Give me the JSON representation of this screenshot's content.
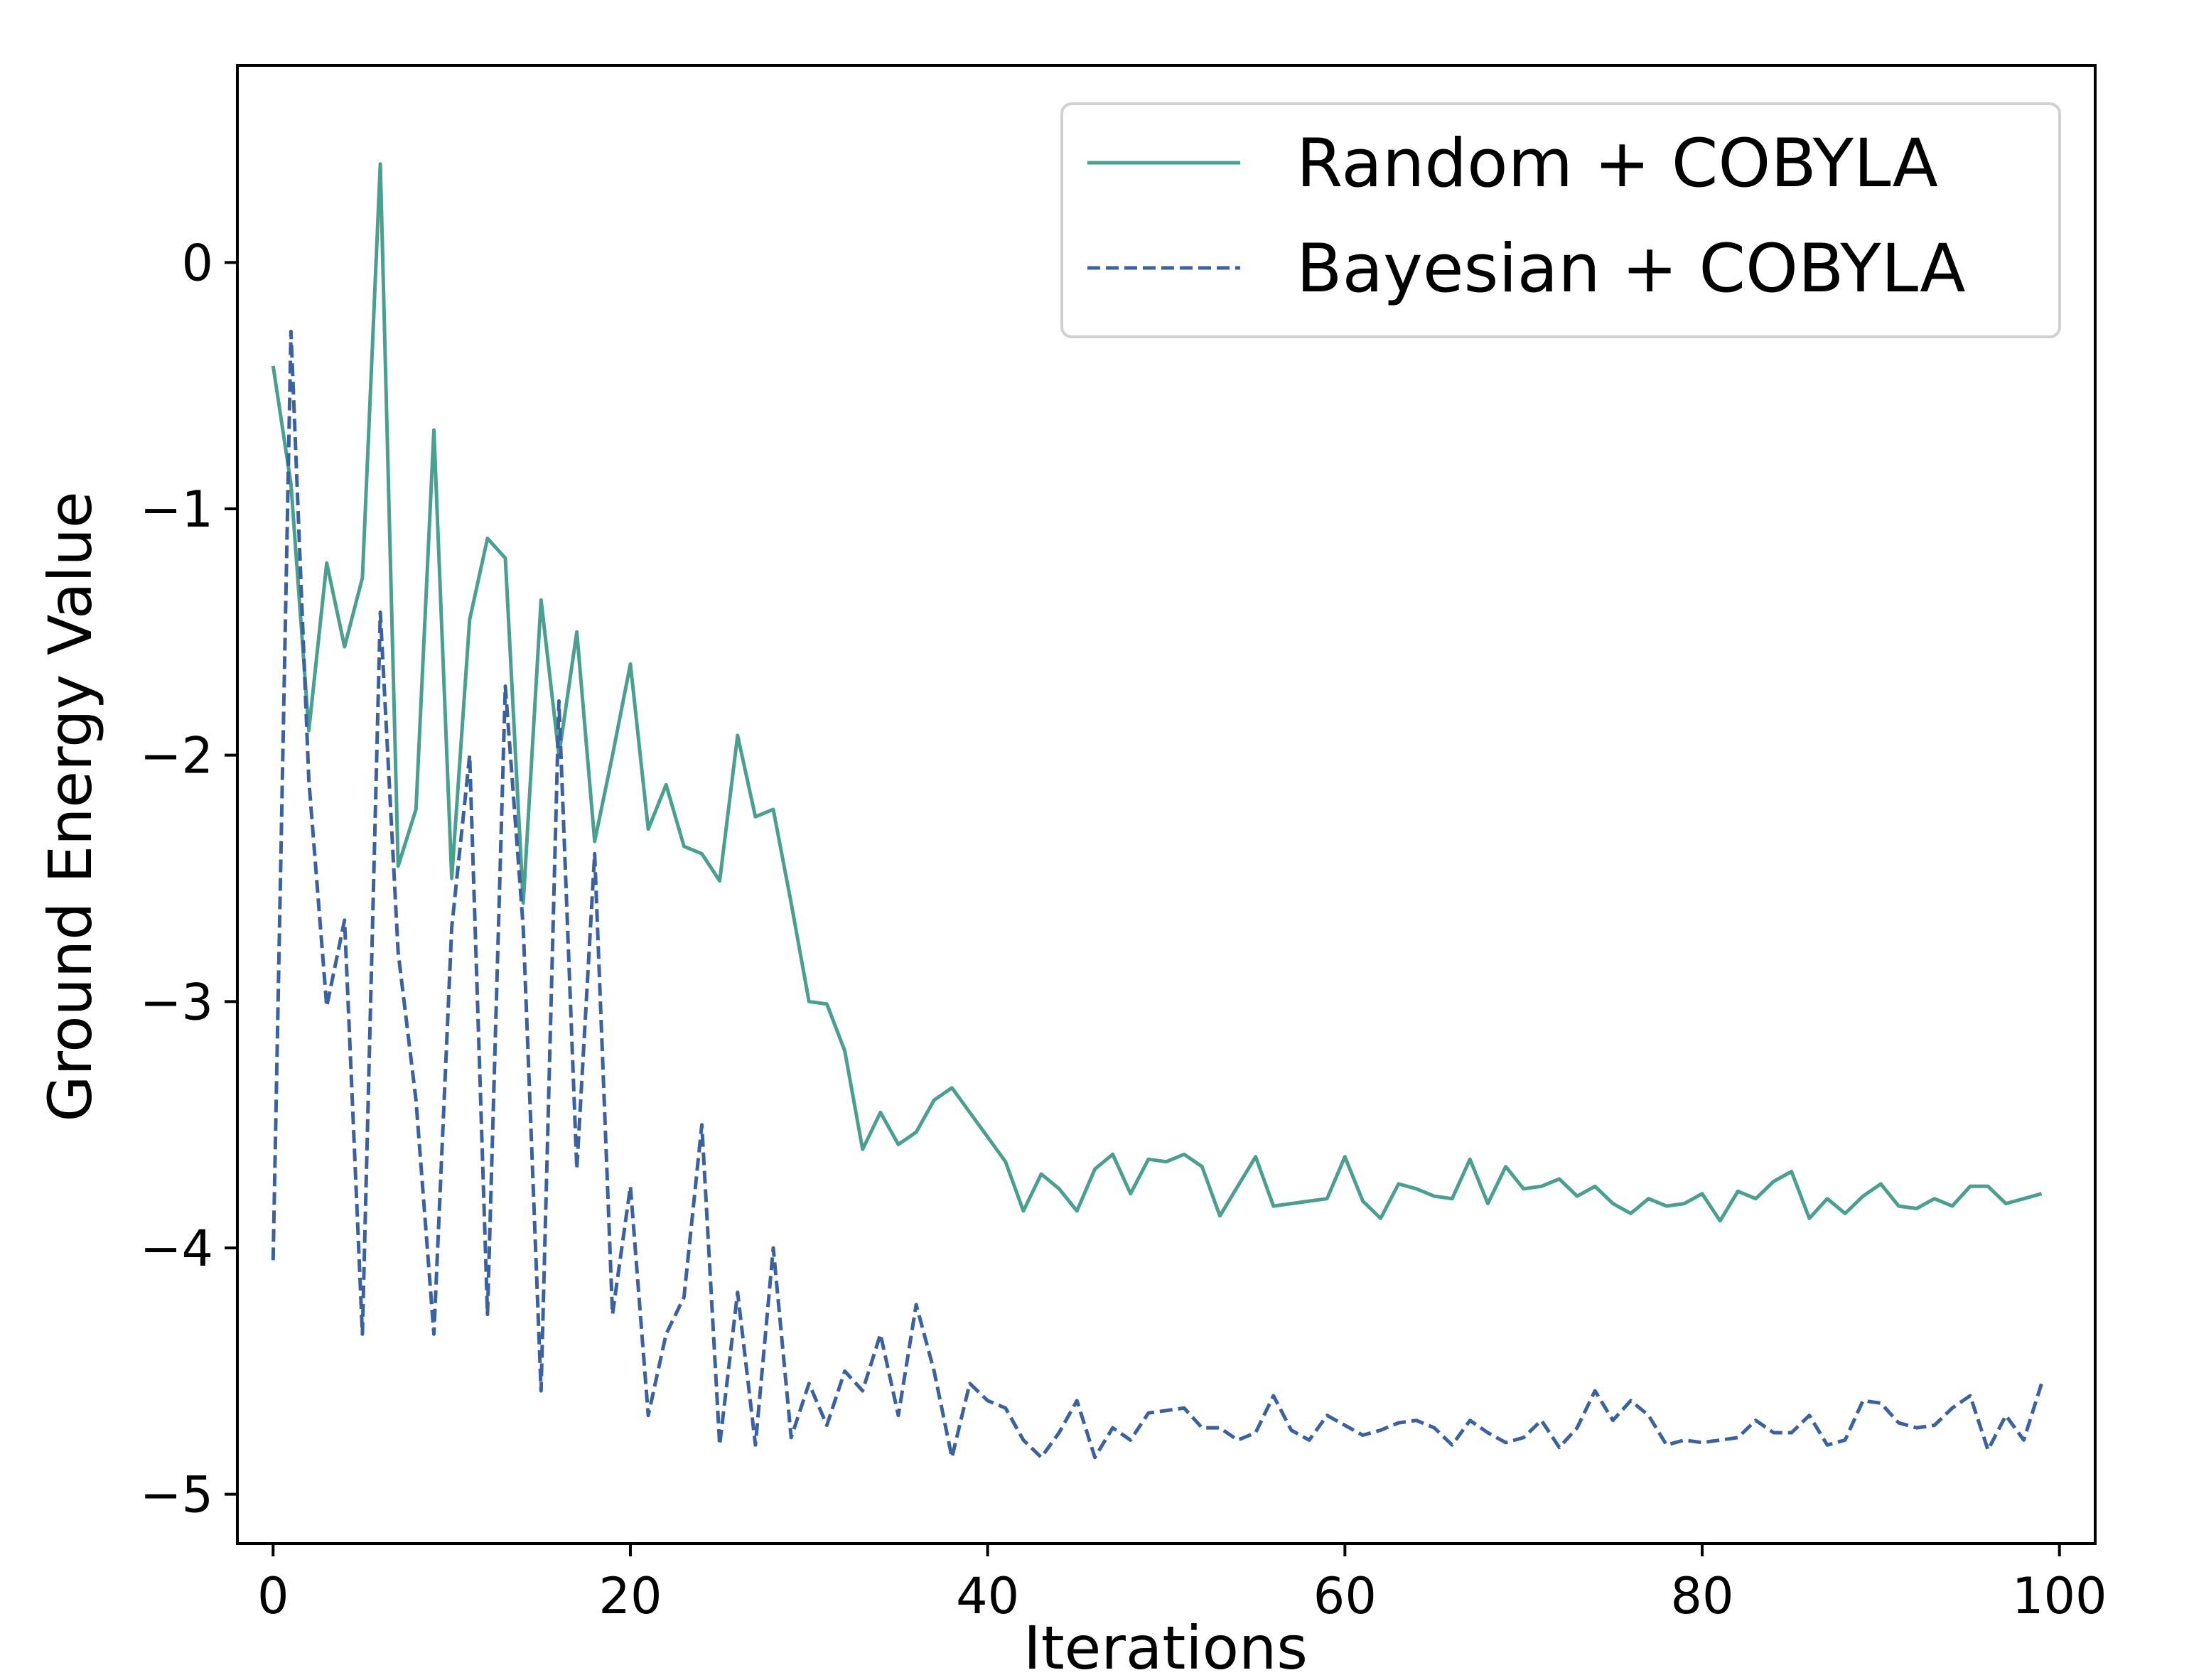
{
  "chart_data": {
    "type": "line",
    "title": "",
    "xlabel": "Iterations",
    "ylabel": "Ground Energy Value",
    "xlim": [
      -2,
      102
    ],
    "ylim": [
      -5.2,
      0.8
    ],
    "x_ticks": [
      0,
      20,
      40,
      60,
      80,
      100
    ],
    "x_tick_labels": [
      "0",
      "20",
      "40",
      "60",
      "80",
      "100"
    ],
    "y_ticks": [
      0,
      -1,
      -2,
      -3,
      -4,
      -5
    ],
    "y_tick_labels": [
      "0",
      "−1",
      "−2",
      "−3",
      "−4",
      "−5"
    ],
    "grid": false,
    "legend_position": "top-right",
    "series": [
      {
        "name": "Random + COBYLA",
        "color": "#4aa08e",
        "line_style": "solid",
        "values": [
          -0.42,
          -0.9,
          -1.9,
          -1.22,
          -1.56,
          -1.28,
          0.4,
          -2.45,
          -2.22,
          -0.68,
          -2.5,
          -1.45,
          -1.12,
          -1.2,
          -2.6,
          -1.37,
          -2.0,
          -1.5,
          -2.35,
          -2.0,
          -1.63,
          -2.3,
          -2.12,
          -2.37,
          -2.4,
          -2.51,
          -1.92,
          -2.25,
          -2.22,
          -2.6,
          -3.0,
          -3.01,
          -3.2,
          -3.6,
          -3.45,
          -3.58,
          -3.53,
          -3.4,
          -3.35,
          -3.45,
          -3.55,
          -3.65,
          -3.85,
          -3.7,
          -3.76,
          -3.85,
          -3.68,
          -3.62,
          -3.78,
          -3.64,
          -3.65,
          -3.62,
          -3.67,
          -3.87,
          -3.75,
          -3.63,
          -3.83,
          -3.82,
          -3.81,
          -3.8,
          -3.63,
          -3.81,
          -3.88,
          -3.74,
          -3.76,
          -3.79,
          -3.8,
          -3.64,
          -3.82,
          -3.67,
          -3.76,
          -3.75,
          -3.72,
          -3.79,
          -3.75,
          -3.82,
          -3.86,
          -3.8,
          -3.83,
          -3.82,
          -3.78,
          -3.89,
          -3.77,
          -3.8,
          -3.73,
          -3.69,
          -3.88,
          -3.8,
          -3.86,
          -3.79,
          -3.74,
          -3.83,
          -3.84,
          -3.8,
          -3.83,
          -3.75,
          -3.75,
          -3.82,
          -3.8,
          -3.78
        ]
      },
      {
        "name": "Bayesian + COBYLA",
        "color": "#3a62a0",
        "line_style": "dashed",
        "values": [
          -4.05,
          -0.28,
          -2.1,
          -3.02,
          -2.67,
          -4.35,
          -1.42,
          -2.8,
          -3.4,
          -4.35,
          -2.7,
          -2.0,
          -4.27,
          -1.72,
          -2.7,
          -4.58,
          -1.78,
          -3.68,
          -2.4,
          -4.27,
          -3.75,
          -4.68,
          -4.35,
          -4.2,
          -3.5,
          -4.8,
          -4.18,
          -4.8,
          -4.0,
          -4.77,
          -4.55,
          -4.72,
          -4.5,
          -4.58,
          -4.35,
          -4.68,
          -4.23,
          -4.5,
          -4.85,
          -4.55,
          -4.62,
          -4.65,
          -4.78,
          -4.85,
          -4.75,
          -4.62,
          -4.85,
          -4.73,
          -4.78,
          -4.67,
          -4.66,
          -4.65,
          -4.73,
          -4.73,
          -4.78,
          -4.75,
          -4.6,
          -4.74,
          -4.78,
          -4.68,
          -4.72,
          -4.76,
          -4.74,
          -4.71,
          -4.7,
          -4.73,
          -4.8,
          -4.7,
          -4.75,
          -4.79,
          -4.77,
          -4.7,
          -4.81,
          -4.73,
          -4.58,
          -4.7,
          -4.62,
          -4.68,
          -4.8,
          -4.78,
          -4.79,
          -4.78,
          -4.77,
          -4.7,
          -4.75,
          -4.75,
          -4.68,
          -4.8,
          -4.78,
          -4.62,
          -4.63,
          -4.71,
          -4.73,
          -4.72,
          -4.65,
          -4.6,
          -4.82,
          -4.68,
          -4.78,
          -4.55
        ]
      }
    ]
  }
}
